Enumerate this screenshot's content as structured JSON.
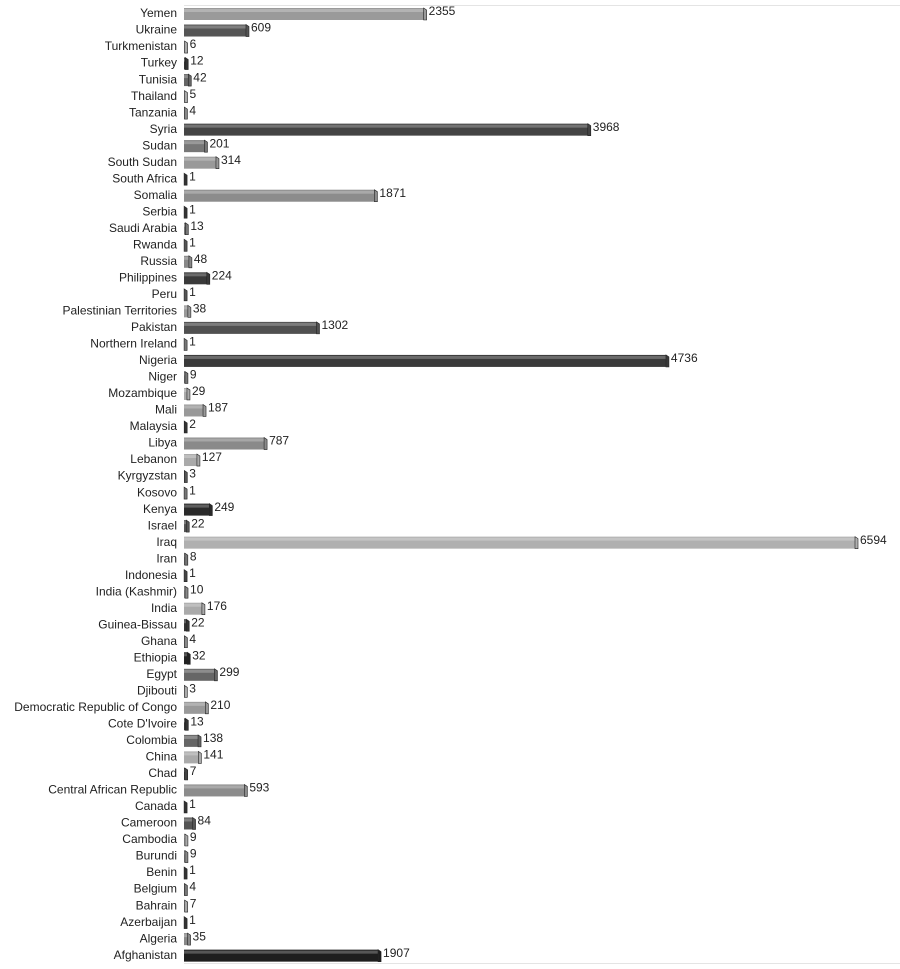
{
  "chart_data": {
    "type": "bar",
    "orientation": "horizontal",
    "categories": [
      "Yemen",
      "Ukraine",
      "Turkmenistan",
      "Turkey",
      "Tunisia",
      "Thailand",
      "Tanzania",
      "Syria",
      "Sudan",
      "South Sudan",
      "South Africa",
      "Somalia",
      "Serbia",
      "Saudi Arabia",
      "Rwanda",
      "Russia",
      "Philippines",
      "Peru",
      "Palestinian Territories",
      "Pakistan",
      "Northern Ireland",
      "Nigeria",
      "Niger",
      "Mozambique",
      "Mali",
      "Malaysia",
      "Libya",
      "Lebanon",
      "Kyrgyzstan",
      "Kosovo",
      "Kenya",
      "Israel",
      "Iraq",
      "Iran",
      "Indonesia",
      "India (Kashmir)",
      "India",
      "Guinea-Bissau",
      "Ghana",
      "Ethiopia",
      "Egypt",
      "Djibouti",
      "Democratic Republic of Congo",
      "Cote D'Ivoire",
      "Colombia",
      "China",
      "Chad",
      "Central African Republic",
      "Canada",
      "Cameroon",
      "Cambodia",
      "Burundi",
      "Benin",
      "Belgium",
      "Bahrain",
      "Azerbaijan",
      "Algeria",
      "Afghanistan"
    ],
    "values": [
      2355,
      609,
      6,
      12,
      42,
      5,
      4,
      3968,
      201,
      314,
      1,
      1871,
      1,
      13,
      1,
      48,
      224,
      1,
      38,
      1302,
      1,
      4736,
      9,
      29,
      187,
      2,
      787,
      127,
      3,
      1,
      249,
      22,
      6594,
      8,
      1,
      10,
      176,
      22,
      4,
      32,
      299,
      3,
      210,
      13,
      138,
      141,
      7,
      593,
      1,
      84,
      9,
      9,
      1,
      4,
      7,
      1,
      35,
      1907
    ],
    "colors": [
      "#9a9a9a",
      "#555555",
      "#aaaaaa",
      "#333333",
      "#666666",
      "#aaaaaa",
      "#888888",
      "#444444",
      "#777777",
      "#999999",
      "#333333",
      "#8c8c8c",
      "#333333",
      "#777777",
      "#555555",
      "#888888",
      "#3a3a3a",
      "#555555",
      "#999999",
      "#505050",
      "#777777",
      "#3a3a3a",
      "#777777",
      "#aaaaaa",
      "#999999",
      "#333333",
      "#8a8a8a",
      "#aaaaaa",
      "#555555",
      "#777777",
      "#2a2a2a",
      "#555555",
      "#b0b0b0",
      "#777777",
      "#444444",
      "#888888",
      "#aaaaaa",
      "#333333",
      "#888888",
      "#222222",
      "#666666",
      "#aaaaaa",
      "#999999",
      "#333333",
      "#666666",
      "#aaaaaa",
      "#444444",
      "#8c8c8c",
      "#333333",
      "#555555",
      "#aaaaaa",
      "#888888",
      "#333333",
      "#777777",
      "#aaaaaa",
      "#333333",
      "#888888",
      "#1e1e1e"
    ]
  }
}
